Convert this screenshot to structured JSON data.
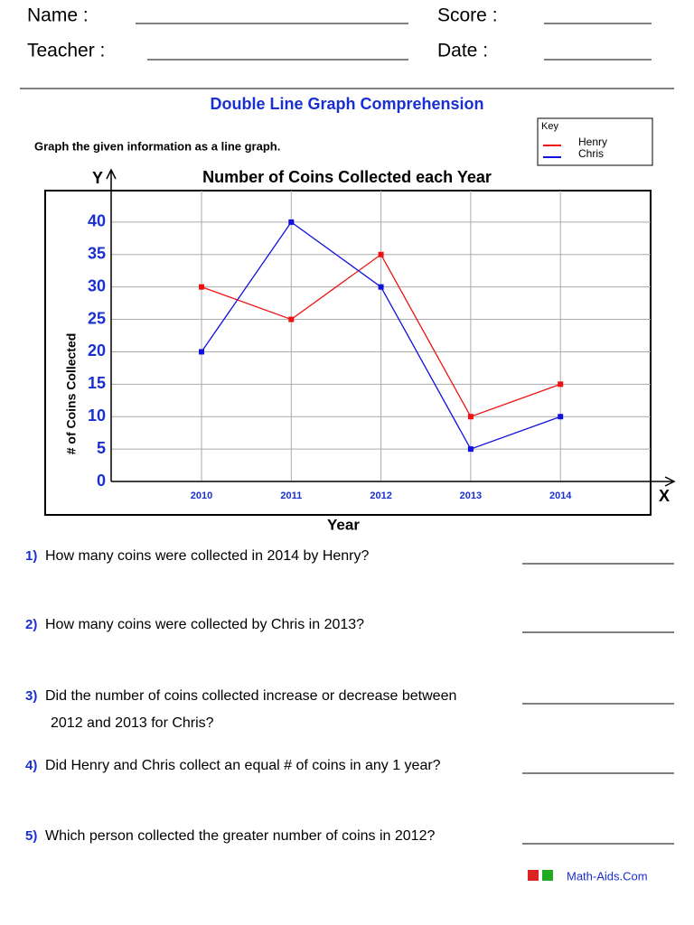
{
  "header": {
    "name_label": "Name :",
    "score_label": "Score :",
    "teacher_label": "Teacher :",
    "date_label": "Date :"
  },
  "title": "Double Line Graph Comprehension",
  "instruction": "Graph the given information as a line graph.",
  "chart_data": {
    "type": "line",
    "title": "Number of Coins Collected each Year",
    "x_label": "Year",
    "y_label": "# of Coins Collected",
    "x_axis_letter": "X",
    "y_axis_letter": "Y",
    "legend_title": "Key",
    "categories": [
      "2010",
      "2011",
      "2012",
      "2013",
      "2014"
    ],
    "series": [
      {
        "name": "Henry",
        "color": "#ee1111",
        "values": [
          30,
          25,
          35,
          10,
          15
        ]
      },
      {
        "name": "Chris",
        "color": "#1111dd",
        "values": [
          20,
          40,
          30,
          5,
          10
        ]
      }
    ],
    "ylim": [
      0,
      45
    ],
    "yticks": [
      0,
      5,
      10,
      15,
      20,
      25,
      30,
      35,
      40
    ],
    "grid": true
  },
  "questions": [
    {
      "number": "1)",
      "lines": [
        "How many coins were collected in 2014 by Henry?"
      ]
    },
    {
      "number": "2)",
      "lines": [
        "How many coins were collected by Chris in 2013?"
      ]
    },
    {
      "number": "3)",
      "lines": [
        "Did the number of coins collected increase or decrease between",
        "2012 and 2013 for Chris?"
      ]
    },
    {
      "number": "4)",
      "lines": [
        "Did Henry and Chris collect an equal # of coins in any 1 year?"
      ]
    },
    {
      "number": "5)",
      "lines": [
        "Which person collected the greater number of coins in 2012?"
      ]
    }
  ],
  "footer": "Math-Aids.Com"
}
